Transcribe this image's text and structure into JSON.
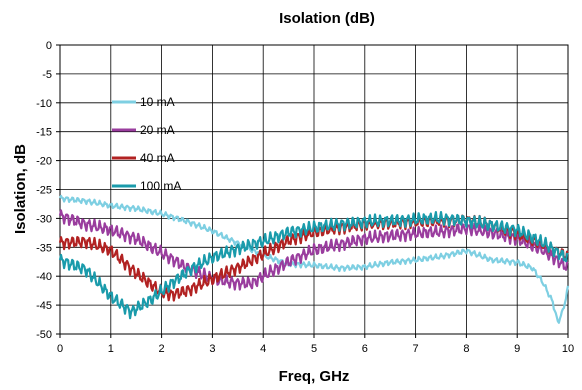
{
  "chart_data": {
    "type": "line",
    "title": "Isolation (dB)",
    "xlabel": "Freq, GHz",
    "ylabel": "Isolation, dB",
    "xlim": [
      0,
      10
    ],
    "ylim": [
      -50,
      0
    ],
    "xticks": [
      0,
      1,
      2,
      3,
      4,
      5,
      6,
      7,
      8,
      9,
      10
    ],
    "yticks": [
      0,
      -5,
      -10,
      -15,
      -20,
      -25,
      -30,
      -35,
      -40,
      -45,
      -50
    ],
    "grid": true,
    "legend_position": "left-middle",
    "series": [
      {
        "name": "10 mA",
        "color": "#7ecfe2",
        "x": [
          0,
          0.5,
          1,
          1.5,
          2,
          2.5,
          3,
          3.5,
          4,
          4.5,
          5,
          5.5,
          6,
          6.5,
          7,
          7.5,
          8,
          8.5,
          9,
          9.3,
          9.5,
          9.7,
          9.8,
          9.9,
          10
        ],
        "y": [
          -26.5,
          -27,
          -27.8,
          -28.3,
          -29.2,
          -30.5,
          -32.2,
          -34.3,
          -36.4,
          -37.9,
          -38.1,
          -38.6,
          -38.4,
          -37.6,
          -37.2,
          -36.6,
          -35.6,
          -37.2,
          -37.6,
          -38.6,
          -41,
          -44.5,
          -48,
          -46,
          -42
        ]
      },
      {
        "name": "20 mA",
        "color": "#9a3d9e",
        "x": [
          0,
          0.5,
          1,
          1.5,
          2,
          2.5,
          3,
          3.5,
          3.8,
          4,
          4.5,
          5,
          5.5,
          6,
          6.5,
          7,
          7.5,
          8,
          8.5,
          9,
          9.5,
          10
        ],
        "y": [
          -29.5,
          -31,
          -32,
          -33.5,
          -36,
          -38.5,
          -40.5,
          -41.2,
          -41.2,
          -40,
          -37.5,
          -35.5,
          -34.5,
          -33.5,
          -33,
          -32.6,
          -32.3,
          -31.7,
          -32.5,
          -33.5,
          -35.5,
          -38.5
        ]
      },
      {
        "name": "40 mA",
        "color": "#b22222",
        "x": [
          0,
          0.5,
          1,
          1.5,
          2,
          2.2,
          2.5,
          3,
          3.5,
          4,
          4.5,
          5,
          5.5,
          6,
          6.5,
          7,
          7.5,
          8,
          8.5,
          9,
          9.5,
          10
        ],
        "y": [
          -34.2,
          -34,
          -35.5,
          -39.5,
          -42.8,
          -43.2,
          -42.5,
          -40.5,
          -38.5,
          -36.2,
          -33.8,
          -32.4,
          -31.6,
          -31,
          -30.8,
          -30.6,
          -30.4,
          -30.3,
          -31.2,
          -32.6,
          -34.5,
          -36.6
        ]
      },
      {
        "name": "100 mA",
        "color": "#1a9bab",
        "x": [
          0,
          0.5,
          1,
          1.4,
          1.8,
          2.2,
          2.6,
          3,
          3.5,
          4,
          4.5,
          5,
          5.5,
          6,
          6.5,
          7,
          7.5,
          8,
          8.5,
          9,
          9.5,
          10
        ],
        "y": [
          -37.2,
          -38.8,
          -43.5,
          -46.2,
          -44,
          -41.2,
          -38.6,
          -36.8,
          -35.2,
          -34,
          -32.4,
          -31.6,
          -31,
          -30.6,
          -30.4,
          -30.2,
          -30,
          -30.4,
          -31.2,
          -32,
          -34.2,
          -37
        ]
      }
    ]
  }
}
